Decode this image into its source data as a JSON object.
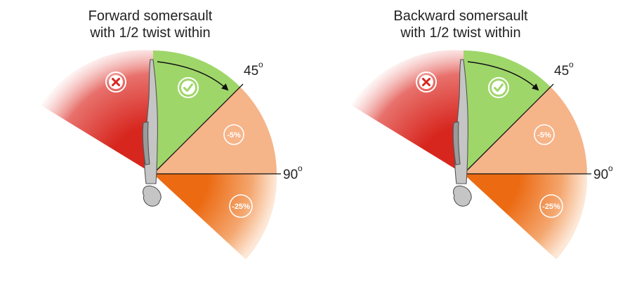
{
  "colors": {
    "reject": "#d7261e",
    "ok": "#9fd66a",
    "minus5": "#f6b489",
    "minus25": "#ec6a12",
    "body_fill": "#c5c5c5",
    "body_stroke": "#555555"
  },
  "icons": {
    "reject": "x-circle-icon",
    "ok": "checkmark-circle-icon"
  },
  "panels": [
    {
      "title_line1": "Forward somersault",
      "title_line2": "with 1/2 twist within",
      "label_45": "45",
      "label_90": "90",
      "deg_symbol": "o",
      "minus5_label": "-5%",
      "minus25_label": "-25%"
    },
    {
      "title_line1": "Backward somersault",
      "title_line2": "with 1/2 twist within",
      "label_45": "45",
      "label_90": "90",
      "deg_symbol": "o",
      "minus5_label": "-5%",
      "minus25_label": "-25%"
    }
  ]
}
